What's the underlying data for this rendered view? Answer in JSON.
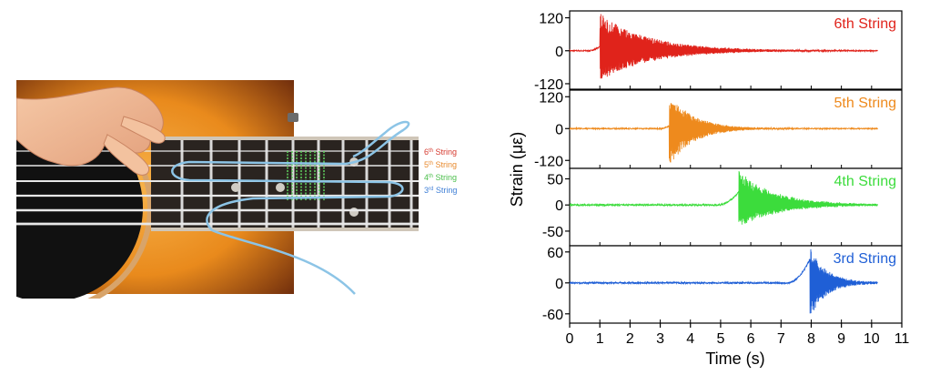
{
  "illustration": {
    "string_labels": [
      {
        "num": "6",
        "sup": "th",
        "text": " String",
        "color": "#d63a2f"
      },
      {
        "num": "5",
        "sup": "th",
        "text": " String",
        "color": "#e88a2e"
      },
      {
        "num": "4",
        "sup": "th",
        "text": " String",
        "color": "#4cbf4c"
      },
      {
        "num": "3",
        "sup": "rd",
        "text": " String",
        "color": "#3f7fd6"
      }
    ]
  },
  "chart_data": {
    "type": "line",
    "xlabel": "Time (s)",
    "ylabel": "Strain (με)",
    "xlim": [
      0,
      11
    ],
    "x_ticks": [
      "0",
      "1",
      "2",
      "3",
      "4",
      "5",
      "6",
      "7",
      "8",
      "9",
      "10",
      "11"
    ],
    "series": [
      {
        "name": "6th String",
        "color": "#e0231b",
        "ylim": [
          -140,
          145
        ],
        "y_ticks": [
          120,
          0,
          -120
        ],
        "y_tick_labels": [
          "120",
          "0",
          "-120"
        ],
        "onset_s": 1.0,
        "peak_pos": 135,
        "peak_neg": -110,
        "decay_s": 1.6,
        "end_s": 10.2,
        "noise": 2,
        "prerise": 15,
        "rise_from": 0.6
      },
      {
        "name": "5th String",
        "color": "#ee8a1d",
        "ylim": [
          -150,
          145
        ],
        "y_ticks": [
          120,
          0,
          -120
        ],
        "y_tick_labels": [
          "120",
          "0",
          "-120"
        ],
        "onset_s": 3.3,
        "peak_pos": 130,
        "peak_neg": -140,
        "decay_s": 0.8,
        "end_s": 10.2,
        "noise": 2,
        "prerise": 10,
        "rise_from": 3.0
      },
      {
        "name": "4th String",
        "color": "#3cdc3c",
        "ylim": [
          -78,
          70
        ],
        "y_ticks": [
          50,
          0,
          -50
        ],
        "y_tick_labels": [
          "50",
          "0",
          "-50"
        ],
        "onset_s": 5.6,
        "peak_pos": 65,
        "peak_neg": -45,
        "decay_s": 1.2,
        "end_s": 10.2,
        "noise": 1.5,
        "prerise": 25,
        "rise_from": 4.9
      },
      {
        "name": "3rd String",
        "color": "#1f5fd6",
        "ylim": [
          -78,
          72
        ],
        "y_ticks": [
          60,
          0,
          -60
        ],
        "y_tick_labels": [
          "60",
          "0",
          "-60"
        ],
        "onset_s": 7.95,
        "peak_pos": 70,
        "peak_neg": -68,
        "decay_s": 0.55,
        "end_s": 10.2,
        "noise": 1.5,
        "prerise": 45,
        "rise_from": 7.2
      }
    ]
  }
}
